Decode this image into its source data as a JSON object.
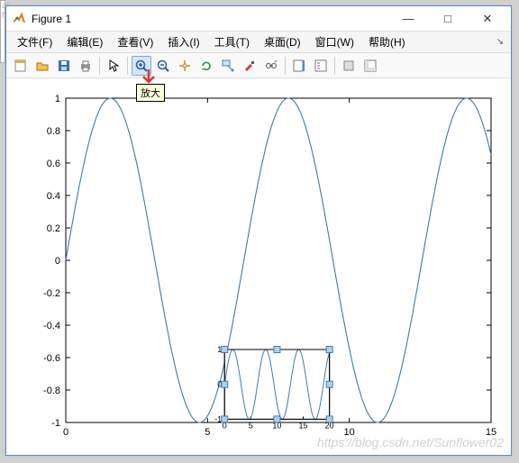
{
  "title": "Figure 1",
  "menus": [
    "文件(F)",
    "编辑(E)",
    "查看(V)",
    "插入(I)",
    "工具(T)",
    "桌面(D)",
    "窗口(W)",
    "帮助(H)"
  ],
  "tooltip": "放大",
  "watermark": "https://blog.csdn.net/Sunflower02",
  "min_glyph": "—",
  "max_glyph": "□",
  "close_glyph": "✕",
  "corner_glyph": "↘",
  "main_chart": {
    "type": "line",
    "xlim": [
      0,
      15
    ],
    "ylim": [
      -1,
      1
    ],
    "xtick_step": 5,
    "ytick_step": 0.2,
    "xticks": [
      0,
      5,
      10,
      15
    ],
    "yticks": [
      -1,
      -0.8,
      -0.6,
      -0.4,
      -0.2,
      0,
      0.2,
      0.4,
      0.6,
      0.8,
      1
    ],
    "curve_color": "#3f79b3",
    "axis_color": "#000000",
    "tick_color": "#000000",
    "label_fontsize": 11,
    "background_color": "#ffffff",
    "line_width": 1.1,
    "function": "sin",
    "amplitude": 1,
    "period": 6.2832
  },
  "inset_chart": {
    "type": "line",
    "xlim": [
      0,
      20
    ],
    "ylim": [
      -1,
      1
    ],
    "xticks": [
      0,
      5,
      10,
      15,
      20
    ],
    "yticks": [
      -1,
      0,
      1
    ],
    "curve_color": "#3f79b3",
    "axis_color": "#000000",
    "label_fontsize": 9,
    "rect_color": "#000000",
    "handle_fill": "#aed1ea",
    "handle_stroke": "#3f79b3",
    "handle_size": 7,
    "selected": true
  },
  "leftstrip": [
    "at",
    "N"
  ]
}
